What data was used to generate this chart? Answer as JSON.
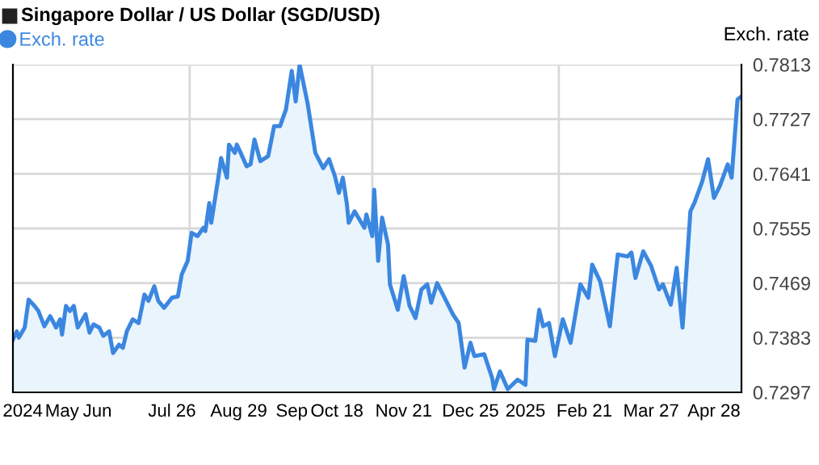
{
  "chart_data": {
    "type": "area",
    "title": "Singapore Dollar / US Dollar (SGD/USD)",
    "ylabel": "Exch. rate",
    "x": [
      "2024-05-06",
      "2024-05-08",
      "2024-05-09",
      "2024-05-12",
      "2024-05-14",
      "2024-05-17",
      "2024-05-19",
      "2024-05-22",
      "2024-05-25",
      "2024-05-28",
      "2024-05-30",
      "2024-05-31",
      "2024-06-02",
      "2024-06-04",
      "2024-06-06",
      "2024-06-08",
      "2024-06-12",
      "2024-06-14",
      "2024-06-16",
      "2024-06-19",
      "2024-06-21",
      "2024-06-24",
      "2024-06-26",
      "2024-06-29",
      "2024-07-01",
      "2024-07-03",
      "2024-07-06",
      "2024-07-09",
      "2024-07-12",
      "2024-07-14",
      "2024-07-17",
      "2024-07-19",
      "2024-07-22",
      "2024-07-26",
      "2024-07-29",
      "2024-07-31",
      "2024-08-03",
      "2024-08-05",
      "2024-08-08",
      "2024-08-11",
      "2024-08-12",
      "2024-08-14",
      "2024-08-15",
      "2024-08-19",
      "2024-08-20",
      "2024-08-23",
      "2024-08-24",
      "2024-08-27",
      "2024-08-28",
      "2024-08-30",
      "2024-09-02",
      "2024-09-04",
      "2024-09-06",
      "2024-09-09",
      "2024-09-13",
      "2024-09-16",
      "2024-09-19",
      "2024-09-22",
      "2024-09-25",
      "2024-09-27",
      "2024-09-29",
      "2024-10-03",
      "2024-10-07",
      "2024-10-11",
      "2024-10-14",
      "2024-10-17",
      "2024-10-19",
      "2024-10-21",
      "2024-10-23",
      "2024-10-24",
      "2024-10-27",
      "2024-11-01",
      "2024-11-02",
      "2024-11-05",
      "2024-11-06",
      "2024-11-08",
      "2024-11-10",
      "2024-11-13",
      "2024-11-14",
      "2024-11-18",
      "2024-11-21",
      "2024-11-24",
      "2024-11-27",
      "2024-11-30",
      "2024-12-03",
      "2024-12-05",
      "2024-12-08",
      "2024-12-11",
      "2024-12-16",
      "2024-12-19",
      "2024-12-22",
      "2024-12-25",
      "2024-12-27",
      "2025-01-01",
      "2025-01-05",
      "2025-01-06",
      "2025-01-09",
      "2025-01-13",
      "2025-01-18",
      "2025-01-22",
      "2025-01-23",
      "2025-01-27",
      "2025-01-29",
      "2025-01-31",
      "2025-02-03",
      "2025-02-06",
      "2025-02-10",
      "2025-02-14",
      "2025-02-19",
      "2025-02-23",
      "2025-02-25",
      "2025-03-01",
      "2025-03-06",
      "2025-03-10",
      "2025-03-15",
      "2025-03-17",
      "2025-03-19",
      "2025-03-23",
      "2025-03-27",
      "2025-03-31",
      "2025-04-02",
      "2025-04-06",
      "2025-04-09",
      "2025-04-12",
      "2025-04-16",
      "2025-04-18",
      "2025-04-22",
      "2025-04-25",
      "2025-04-28",
      "2025-05-01",
      "2025-05-05",
      "2025-05-07",
      "2025-05-10",
      "2025-05-12"
    ],
    "series": [
      {
        "name": "Exch. rate",
        "color": "#3b87e0",
        "values": [
          0.738,
          0.7393,
          0.7383,
          0.7399,
          0.7443,
          0.7433,
          0.7425,
          0.7401,
          0.7417,
          0.7399,
          0.7412,
          0.7388,
          0.7433,
          0.7425,
          0.7433,
          0.7399,
          0.742,
          0.7391,
          0.7404,
          0.7399,
          0.7386,
          0.7393,
          0.7359,
          0.7372,
          0.7367,
          0.7393,
          0.7412,
          0.7406,
          0.7451,
          0.7441,
          0.7464,
          0.7441,
          0.743,
          0.7446,
          0.7448,
          0.7483,
          0.7504,
          0.7548,
          0.7543,
          0.7556,
          0.7551,
          0.7595,
          0.7564,
          0.7643,
          0.7666,
          0.7635,
          0.7687,
          0.7674,
          0.7687,
          0.7674,
          0.7653,
          0.7656,
          0.7695,
          0.7661,
          0.7669,
          0.7716,
          0.7716,
          0.7742,
          0.7803,
          0.7755,
          0.7813,
          0.7753,
          0.7674,
          0.765,
          0.7664,
          0.7637,
          0.7611,
          0.7635,
          0.7595,
          0.7564,
          0.7582,
          0.7556,
          0.7577,
          0.7543,
          0.7616,
          0.7504,
          0.7572,
          0.753,
          0.7467,
          0.7427,
          0.748,
          0.7433,
          0.7414,
          0.7459,
          0.7467,
          0.7438,
          0.7469,
          0.7451,
          0.742,
          0.7406,
          0.7336,
          0.7375,
          0.7354,
          0.7357,
          0.732,
          0.7302,
          0.733,
          0.7302,
          0.7317,
          0.7309,
          0.738,
          0.7378,
          0.7427,
          0.7401,
          0.7406,
          0.7354,
          0.7412,
          0.7375,
          0.7467,
          0.7446,
          0.7498,
          0.7472,
          0.7401,
          0.7514,
          0.7511,
          0.7517,
          0.7477,
          0.7519,
          0.7496,
          0.7459,
          0.7467,
          0.7435,
          0.7493,
          0.7399,
          0.7582,
          0.7595,
          0.7629,
          0.7664,
          0.7603,
          0.7622,
          0.7656,
          0.7635,
          0.7758,
          0.7763
        ]
      }
    ],
    "xlim": [
      "2024-05-06",
      "2025-05-12"
    ],
    "xticks": [
      {
        "value": "2024-05-11",
        "label": "2024"
      },
      {
        "value": "2024-05-31",
        "label": "May"
      },
      {
        "value": "2024-06-18",
        "label": "Jun"
      },
      {
        "value": "2024-07-26",
        "label": "Jul 26"
      },
      {
        "value": "2024-08-29",
        "label": "Aug 29"
      },
      {
        "value": "2024-09-25",
        "label": "Sep"
      },
      {
        "value": "2024-10-18",
        "label": "Oct 18"
      },
      {
        "value": "2024-11-21",
        "label": "Nov 21"
      },
      {
        "value": "2024-12-25",
        "label": "Dec 25"
      },
      {
        "value": "2025-01-22",
        "label": "2025"
      },
      {
        "value": "2025-02-21",
        "label": "Feb 21"
      },
      {
        "value": "2025-03-27",
        "label": "Mar 27"
      },
      {
        "value": "2025-04-28",
        "label": "Apr 28"
      }
    ],
    "ylim": [
      0.7297,
      0.7813
    ],
    "yticks": [
      {
        "value": 0.7297,
        "label": "0.7297"
      },
      {
        "value": 0.7383,
        "label": "0.7383"
      },
      {
        "value": 0.7469,
        "label": "0.7469"
      },
      {
        "value": 0.7555,
        "label": "0.7555"
      },
      {
        "value": 0.7641,
        "label": "0.7641"
      },
      {
        "value": 0.7727,
        "label": "0.7727"
      },
      {
        "value": 0.7813,
        "label": "0.7813"
      }
    ],
    "ref_lines": [
      {
        "axis": "x",
        "value": "2024-08-04",
        "color": "#d9d9d9"
      },
      {
        "axis": "x",
        "value": "2024-11-05",
        "color": "#d9d9d9"
      },
      {
        "axis": "x",
        "value": "2025-02-08",
        "color": "#d9d9d9"
      }
    ],
    "grid": "y",
    "legend": "top left",
    "marker": "none",
    "line_style": "solid"
  }
}
